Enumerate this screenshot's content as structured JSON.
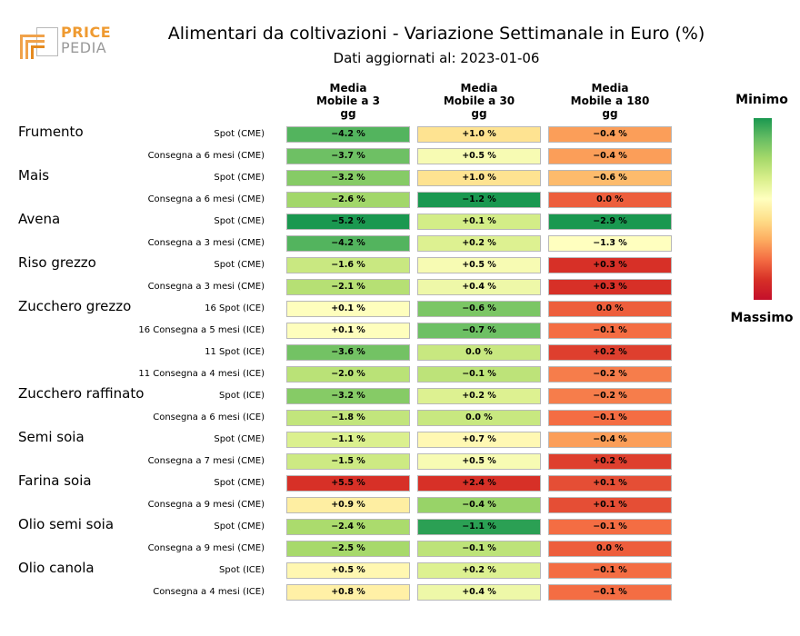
{
  "header": {
    "logo_text_top": "PRICE",
    "logo_text_bottom": "PEDIA",
    "title": "Alimentari da coltivazioni - Variazione Settimanale in Euro (%)",
    "subtitle": "Dati aggiornati al: 2023-01-06"
  },
  "legend": {
    "min_label": "Minimo",
    "max_label": "Massimo",
    "colors": [
      "#1a9850",
      "#66bd63",
      "#a6d96a",
      "#d9ef8b",
      "#ffffbf",
      "#fee08b",
      "#fdae61",
      "#f46d43",
      "#d73027"
    ]
  },
  "chart_data": {
    "type": "heatmap",
    "title": "Alimentari da coltivazioni - Variazione Settimanale in Euro (%)",
    "columns": [
      "Media\nMobile a 3\ngg",
      "Media\nMobile a 30\ngg",
      "Media\nMobile a 180\ngg"
    ],
    "products": [
      {
        "name": "Frumento",
        "rows": [
          {
            "label": "Spot (CME)",
            "values": [
              -4.2,
              1.0,
              -0.4
            ]
          },
          {
            "label": "Consegna a 6 mesi (CME)",
            "values": [
              -3.7,
              0.5,
              -0.4
            ]
          }
        ]
      },
      {
        "name": "Mais",
        "rows": [
          {
            "label": "Spot (CME)",
            "values": [
              -3.2,
              1.0,
              -0.6
            ]
          },
          {
            "label": "Consegna a 6 mesi (CME)",
            "values": [
              -2.6,
              -1.2,
              0.0
            ]
          }
        ]
      },
      {
        "name": "Avena",
        "rows": [
          {
            "label": "Spot (CME)",
            "values": [
              -5.2,
              0.1,
              -2.9
            ]
          },
          {
            "label": "Consegna a 3 mesi (CME)",
            "values": [
              -4.2,
              0.2,
              -1.3
            ]
          }
        ]
      },
      {
        "name": "Riso grezzo",
        "rows": [
          {
            "label": "Spot (CME)",
            "values": [
              -1.6,
              0.5,
              0.3
            ]
          },
          {
            "label": "Consegna a 3 mesi (CME)",
            "values": [
              -2.1,
              0.4,
              0.3
            ]
          }
        ]
      },
      {
        "name": "Zucchero grezzo",
        "rows": [
          {
            "label": "16 Spot (ICE)",
            "values": [
              0.1,
              -0.6,
              0.0
            ]
          },
          {
            "label": "16 Consegna a 5 mesi (ICE)",
            "values": [
              0.1,
              -0.7,
              -0.1
            ]
          },
          {
            "label": "11 Spot (ICE)",
            "values": [
              -3.6,
              0.0,
              0.2
            ]
          },
          {
            "label": "11 Consegna a 4 mesi (ICE)",
            "values": [
              -2.0,
              -0.1,
              -0.2
            ]
          }
        ]
      },
      {
        "name": "Zucchero raffinato",
        "rows": [
          {
            "label": "Spot (ICE)",
            "values": [
              -3.2,
              0.2,
              -0.2
            ]
          },
          {
            "label": "Consegna a 6 mesi (ICE)",
            "values": [
              -1.8,
              0.0,
              -0.1
            ]
          }
        ]
      },
      {
        "name": "Semi soia",
        "rows": [
          {
            "label": "Spot (CME)",
            "values": [
              -1.1,
              0.7,
              -0.4
            ]
          },
          {
            "label": "Consegna a 7 mesi (CME)",
            "values": [
              -1.5,
              0.5,
              0.2
            ]
          }
        ]
      },
      {
        "name": "Farina soia",
        "rows": [
          {
            "label": "Spot (CME)",
            "values": [
              5.5,
              2.4,
              0.1
            ]
          },
          {
            "label": "Consegna a 9 mesi (CME)",
            "values": [
              0.9,
              -0.4,
              0.1
            ]
          }
        ]
      },
      {
        "name": "Olio semi soia",
        "rows": [
          {
            "label": "Spot (CME)",
            "values": [
              -2.4,
              -1.1,
              -0.1
            ]
          },
          {
            "label": "Consegna a 9 mesi (CME)",
            "values": [
              -2.5,
              -0.1,
              0.0
            ]
          }
        ]
      },
      {
        "name": "Olio canola",
        "rows": [
          {
            "label": "Spot (ICE)",
            "values": [
              0.5,
              0.2,
              -0.1
            ]
          },
          {
            "label": "Consegna a 4 mesi (ICE)",
            "values": [
              0.8,
              0.4,
              -0.1
            ]
          }
        ]
      }
    ]
  }
}
